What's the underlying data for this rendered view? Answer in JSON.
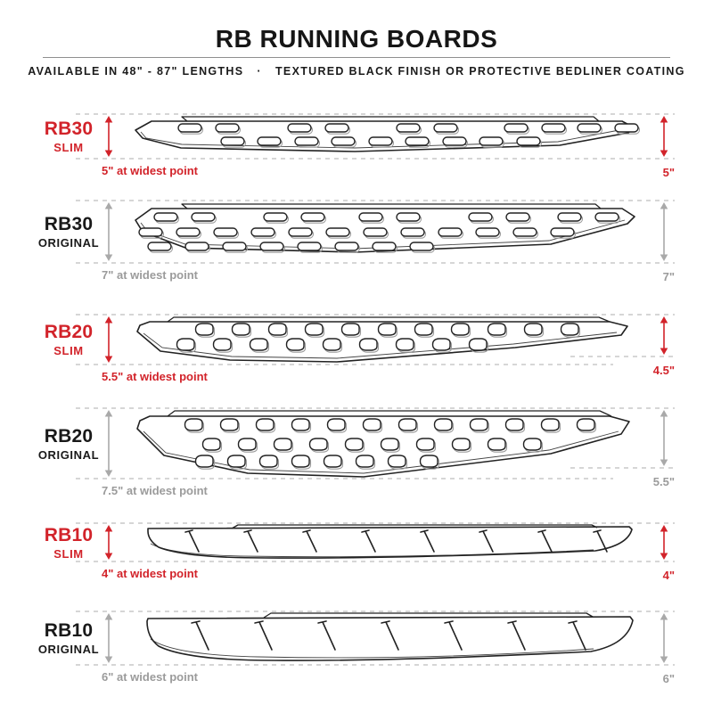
{
  "header": {
    "title": "RB RUNNING BOARDS",
    "subtitle": "AVAILABLE IN 48\" - 87\" LENGTHS  ·  TEXTURED BLACK FINISH OR PROTECTIVE BEDLINER COATING"
  },
  "colors": {
    "accent_red": "#d2232a",
    "label_black": "#191919",
    "dim_gray": "#9b9b9b",
    "outline": "#222222",
    "dash_gray": "#d6d6d6",
    "arrow_gray": "#a9a9a9"
  },
  "rows": [
    {
      "model": "RB30",
      "variant": "SLIM",
      "finish": "slim",
      "width_label": "5\" at widest point",
      "height_label": "5\""
    },
    {
      "model": "RB30",
      "variant": "ORIGINAL",
      "finish": "original",
      "width_label": "7\" at widest point",
      "height_label": "7\""
    },
    {
      "model": "RB20",
      "variant": "SLIM",
      "finish": "slim",
      "width_label": "5.5\" at widest point",
      "height_label": "4.5\""
    },
    {
      "model": "RB20",
      "variant": "ORIGINAL",
      "finish": "original",
      "width_label": "7.5\" at widest point",
      "height_label": "5.5\""
    },
    {
      "model": "RB10",
      "variant": "SLIM",
      "finish": "slim",
      "width_label": "4\" at widest point",
      "height_label": "4\""
    },
    {
      "model": "RB10",
      "variant": "ORIGINAL",
      "finish": "original",
      "width_label": "6\" at widest point",
      "height_label": "6\""
    }
  ]
}
